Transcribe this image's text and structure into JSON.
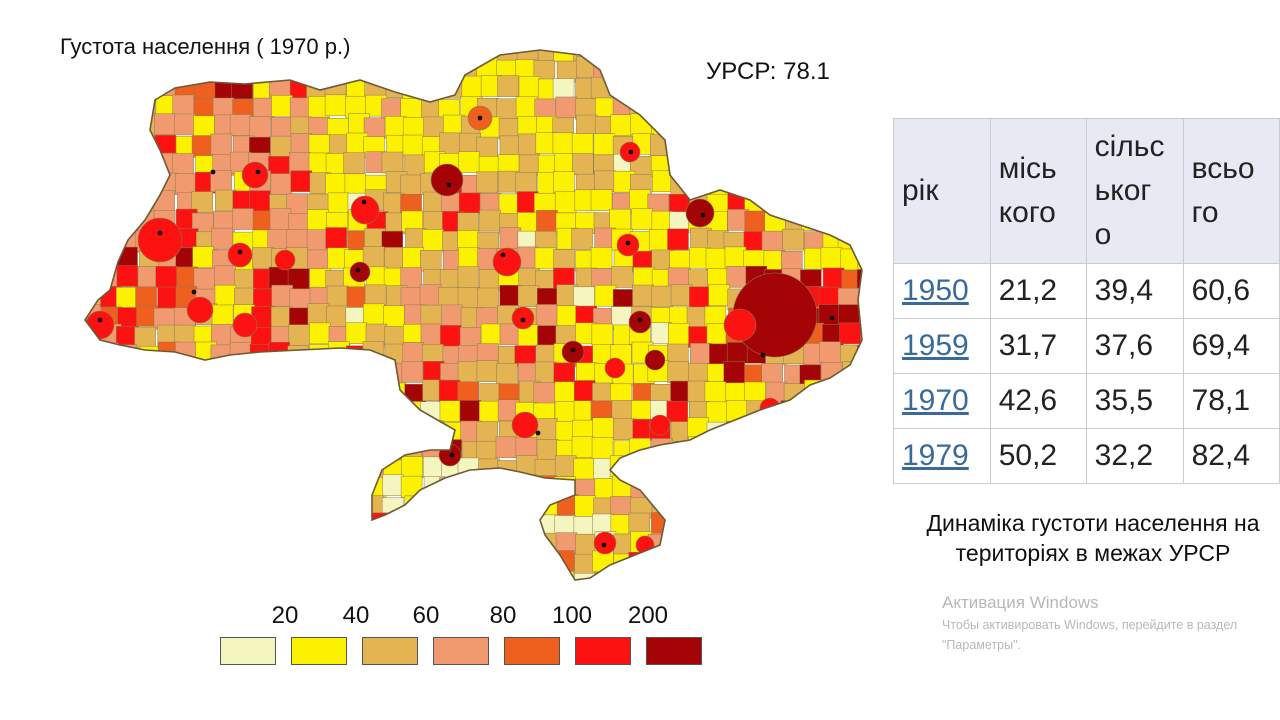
{
  "map": {
    "title": "Густота населення ( 1970 р.)",
    "total_label": "УРСР: 78.1",
    "colors": {
      "c1": "#f5f5c0",
      "c2": "#fcf200",
      "c3": "#e4b453",
      "c4": "#f19a6f",
      "c5": "#ef5f1d",
      "c6": "#fc1210",
      "c7": "#a40406",
      "border": "#8a7a50"
    }
  },
  "legend": {
    "labels": [
      "20",
      "40",
      "60",
      "80",
      "100",
      "200"
    ],
    "colors": [
      "#f5f5c0",
      "#fcf200",
      "#e4b453",
      "#f19a6f",
      "#ef5f1d",
      "#fc1210",
      "#a40406"
    ]
  },
  "table": {
    "headers": [
      "рік",
      "міськ кого",
      "сільськ ого",
      "всього"
    ],
    "header_lines": [
      [
        "рік"
      ],
      [
        "місь",
        "кого"
      ],
      [
        "сільс",
        "ьког",
        "о"
      ],
      [
        "всьо",
        "го"
      ]
    ],
    "rows": [
      [
        "1950",
        "21,2",
        "39,4",
        "60,6"
      ],
      [
        "1959",
        "31,7",
        "37,6",
        "69,4"
      ],
      [
        "1970",
        "42,6",
        "35,5",
        "78,1"
      ],
      [
        "1979",
        "50,2",
        "32,2",
        "82,4"
      ]
    ]
  },
  "caption": "Динаміка густоти населення на територіях в межах УРСР",
  "watermark": {
    "title": "Активация Windows",
    "text": "Чтобы активировать Windows, перейдите в раздел \"Параметры\"."
  }
}
